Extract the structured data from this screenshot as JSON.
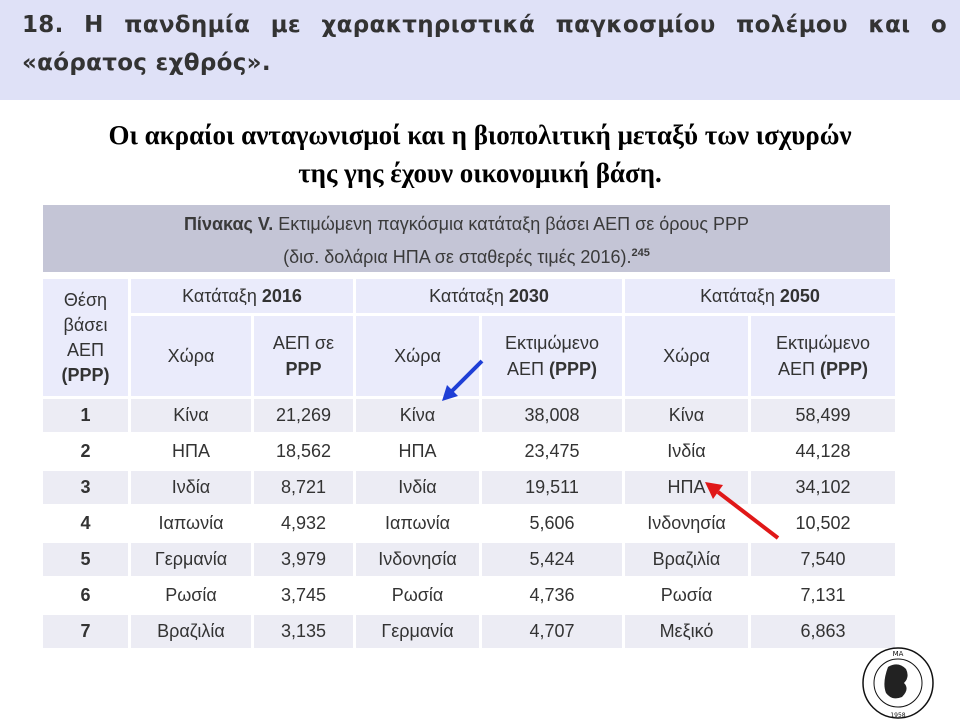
{
  "header": {
    "title": "18. Η πανδημία με χαρακτηριστικά παγκοσμίου πολέμου και ο «αόρατος εχθρός»."
  },
  "subtitle": {
    "line1": "Οι ακραίοι ανταγωνισμοί  και η βιοπολιτική μεταξύ των ισχυρών",
    "line2": "της γης έχουν οικονομική βάση."
  },
  "table": {
    "caption_bold": "Πίνακας V.",
    "caption_line1": " Εκτιμώμενη παγκόσμια κατάταξη βάσει ΑΕΠ σε όρους PPP",
    "caption_line2": "(δισ. δολάρια ΗΠΑ σε σταθερές τιμές 2016).",
    "caption_sup": "245",
    "rank_header": {
      "l1": "Θέση",
      "l2": "βάσει",
      "l3": "ΑΕΠ",
      "l4": "(PPP)"
    },
    "groups": [
      {
        "label": "Κατάταξη ",
        "year": "2016"
      },
      {
        "label": "Κατάταξη ",
        "year": "2030"
      },
      {
        "label": "Κατάταξη ",
        "year": "2050"
      }
    ],
    "sub_headers": {
      "country": "Χώρα",
      "gdp2016_l1": "ΑΕΠ σε",
      "gdp2016_l2": "PPP",
      "gdp_est_l1": "Εκτιμώμενο",
      "gdp_est_l2a": "ΑΕΠ ",
      "gdp_est_l2b": "(PPP)"
    },
    "rows": [
      {
        "rank": "1",
        "c2016": "Κίνα",
        "v2016": "21,269",
        "c2030": "Κίνα",
        "v2030": "38,008",
        "c2050": "Κίνα",
        "v2050": "58,499"
      },
      {
        "rank": "2",
        "c2016": "ΗΠΑ",
        "v2016": "18,562",
        "c2030": "ΗΠΑ",
        "v2030": "23,475",
        "c2050": "Ινδία",
        "v2050": "44,128"
      },
      {
        "rank": "3",
        "c2016": "Ινδία",
        "v2016": "8,721",
        "c2030": "Ινδία",
        "v2030": "19,511",
        "c2050": "ΗΠΑ",
        "v2050": "34,102"
      },
      {
        "rank": "4",
        "c2016": "Ιαπωνία",
        "v2016": "4,932",
        "c2030": "Ιαπωνία",
        "v2030": "5,606",
        "c2050": "Ινδονησία",
        "v2050": "10,502"
      },
      {
        "rank": "5",
        "c2016": "Γερμανία",
        "v2016": "3,979",
        "c2030": "Ινδονησία",
        "v2030": "5,424",
        "c2050": "Βραζιλία",
        "v2050": "7,540"
      },
      {
        "rank": "6",
        "c2016": "Ρωσία",
        "v2016": "3,745",
        "c2030": "Ρωσία",
        "v2030": "4,736",
        "c2050": "Ρωσία",
        "v2050": "7,131"
      },
      {
        "rank": "7",
        "c2016": "Βραζιλία",
        "v2016": "3,135",
        "c2030": "Γερμανία",
        "v2030": "4,707",
        "c2050": "Μεξικό",
        "v2050": "6,863"
      }
    ]
  },
  "annotations": {
    "blue_arrow_color": "#1f3fd6",
    "red_arrow_color": "#e01818"
  },
  "logo": {
    "top_text": "ΕΘΝΙΚΟ ΚΕΝΤΡΟ ΚΟΙΝΩΝΙΚΩΝ ΕΡΕΥΝΩΝ",
    "year": "1958",
    "badge_text": "ΜΑ"
  }
}
